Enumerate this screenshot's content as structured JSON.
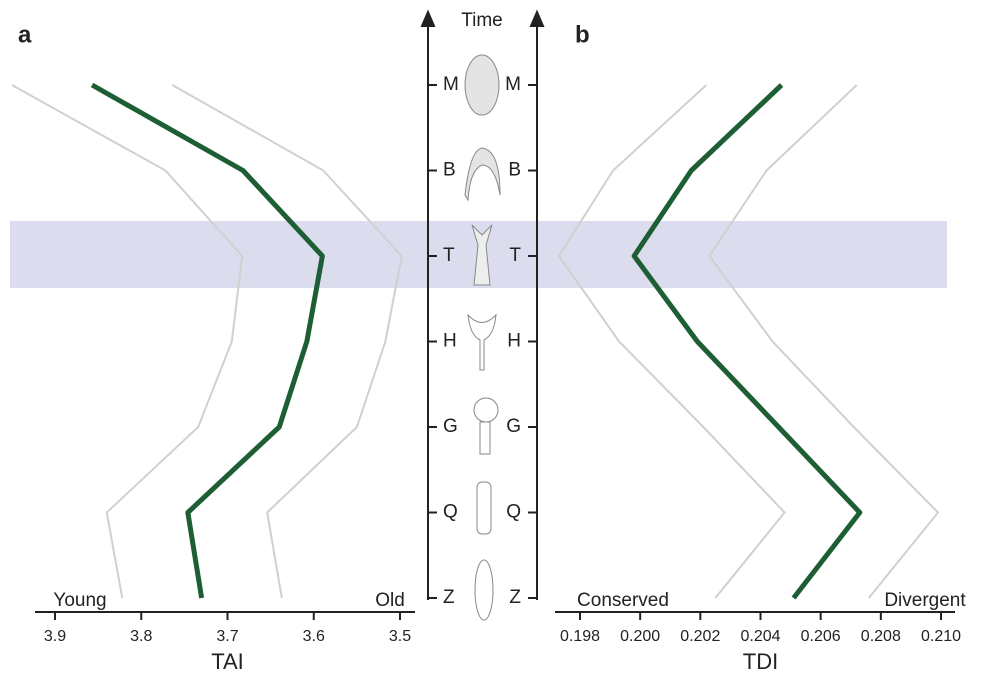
{
  "time_label": "Time",
  "chart_data": [
    {
      "type": "line",
      "panel_label": "a",
      "xlabel": "TAI",
      "categories": [
        "Z",
        "Q",
        "G",
        "H",
        "T",
        "B",
        "M"
      ],
      "xlim": [
        3.9,
        3.5
      ],
      "xticks": [
        3.9,
        3.8,
        3.7,
        3.6,
        3.5
      ],
      "x_annotations": [
        "Young",
        "Old"
      ],
      "series": [
        {
          "color": "#d0d0d0",
          "values": [
            3.822,
            3.84,
            3.734,
            3.695,
            3.683,
            3.772,
            3.95
          ]
        },
        {
          "color": "#d0d0d0",
          "values": [
            3.637,
            3.654,
            3.55,
            3.517,
            3.498,
            3.589,
            3.764
          ]
        },
        {
          "color": "#1e5e34",
          "values": [
            3.73,
            3.746,
            3.64,
            3.608,
            3.59,
            3.682,
            3.857
          ]
        }
      ]
    },
    {
      "type": "line",
      "panel_label": "b",
      "xlabel": "TDI",
      "categories": [
        "Z",
        "Q",
        "G",
        "H",
        "T",
        "B",
        "M"
      ],
      "xlim": [
        0.198,
        0.21
      ],
      "xticks": [
        0.198,
        {
          "value": 0.2,
          "label": "0.200"
        },
        0.202,
        0.204,
        0.206,
        0.208,
        {
          "value": 0.21,
          "label": "0.210"
        }
      ],
      "x_annotations": [
        "Conserved",
        "Divergent"
      ],
      "series": [
        {
          "color": "#d0d0d0",
          "values": [
            0.2025,
            0.2048,
            0.2021,
            0.1993,
            0.1973,
            0.1991,
            0.2022
          ]
        },
        {
          "color": "#d0d0d0",
          "values": [
            0.2076,
            0.2099,
            0.2071,
            0.2044,
            0.2023,
            0.2042,
            0.2072
          ]
        },
        {
          "color": "#1e5e34",
          "values": [
            0.2051,
            0.2073,
            0.2046,
            0.2019,
            0.1998,
            0.2017,
            0.2047
          ]
        }
      ]
    }
  ]
}
